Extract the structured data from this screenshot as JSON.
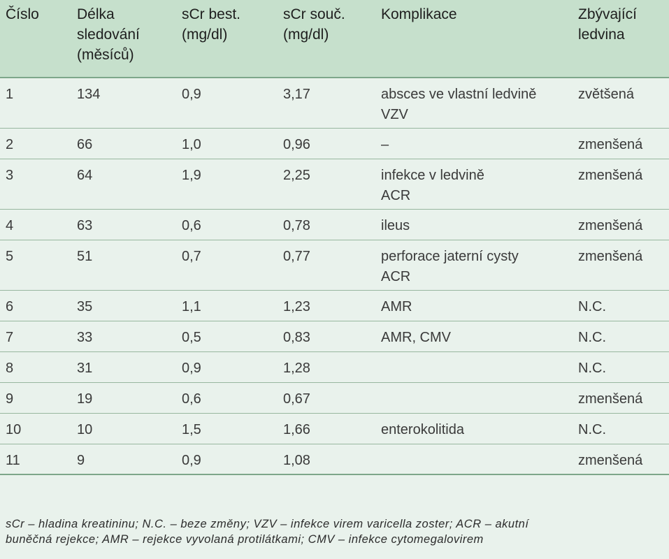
{
  "header": {
    "col1": [
      "Číslo"
    ],
    "col2": [
      "Délka",
      "sledování",
      "(měsíců)"
    ],
    "col3": [
      "sCr best.",
      "(mg/dl)"
    ],
    "col4": [
      "sCr souč.",
      "(mg/dl)"
    ],
    "col5": [
      "Komplikace"
    ],
    "col6": [
      "Zbývající",
      "ledvina"
    ]
  },
  "rows": [
    {
      "cislo": "1",
      "delka": "134",
      "best": "0,9",
      "souc": "3,17",
      "komplikace": [
        "absces ve vlastní ledvině",
        "VZV"
      ],
      "ledvina": "zvětšená"
    },
    {
      "cislo": "2",
      "delka": "66",
      "best": "1,0",
      "souc": "0,96",
      "komplikace": [
        "–"
      ],
      "ledvina": "zmenšená"
    },
    {
      "cislo": "3",
      "delka": "64",
      "best": "1,9",
      "souc": "2,25",
      "komplikace": [
        "infekce v ledvině",
        "ACR"
      ],
      "ledvina": "zmenšená"
    },
    {
      "cislo": "4",
      "delka": "63",
      "best": "0,6",
      "souc": "0,78",
      "komplikace": [
        "ileus"
      ],
      "ledvina": "zmenšená"
    },
    {
      "cislo": "5",
      "delka": "51",
      "best": "0,7",
      "souc": "0,77",
      "komplikace": [
        "perforace jaterní cysty",
        "ACR"
      ],
      "ledvina": "zmenšená"
    },
    {
      "cislo": "6",
      "delka": "35",
      "best": "1,1",
      "souc": "1,23",
      "komplikace": [
        "AMR"
      ],
      "ledvina": "N.C."
    },
    {
      "cislo": "7",
      "delka": "33",
      "best": "0,5",
      "souc": "0,83",
      "komplikace": [
        "AMR, CMV"
      ],
      "ledvina": "N.C."
    },
    {
      "cislo": "8",
      "delka": "31",
      "best": "0,9",
      "souc": "1,28",
      "komplikace": [
        ""
      ],
      "ledvina": "N.C."
    },
    {
      "cislo": "9",
      "delka": "19",
      "best": "0,6",
      "souc": "0,67",
      "komplikace": [
        ""
      ],
      "ledvina": "zmenšená"
    },
    {
      "cislo": "10",
      "delka": "10",
      "best": "1,5",
      "souc": "1,66",
      "komplikace": [
        "enterokolitida"
      ],
      "ledvina": "N.C."
    },
    {
      "cislo": "11",
      "delka": "9",
      "best": "0,9",
      "souc": "1,08",
      "komplikace": [
        ""
      ],
      "ledvina": "zmenšená"
    }
  ],
  "footnote": [
    "sCr – hladina kreatininu; N.C. – beze změny; VZV – infekce virem varicella zoster; ACR – akutní",
    "buněčná rejekce; AMR – rejekce vyvolaná protilátkami; CMV – infekce cytomegalovirem"
  ]
}
